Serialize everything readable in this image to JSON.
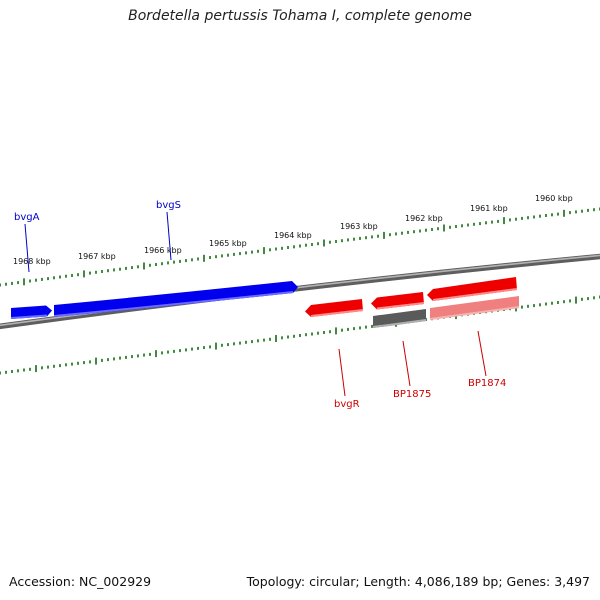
{
  "title": "Bordetella pertussis Tohama I, complete genome",
  "footer": {
    "accession": "Accession: NC_002929",
    "summary": "Topology: circular; Length: 4,086,189 bp; Genes: 3,497"
  },
  "colors": {
    "backbone": "#888888",
    "ticks": "#2e7d2e",
    "forward_gene": "#0000ee",
    "reverse_gene": "#ee0000",
    "grey_feature": "#5a5a5a",
    "pink_feature": "#f08080"
  },
  "scale_labels": [
    "1968 kbp",
    "1967 kbp",
    "1966 kbp",
    "1965 kbp",
    "1964 kbp",
    "1963 kbp",
    "1962 kbp",
    "1961 kbp",
    "1960 kbp"
  ],
  "gene_labels": {
    "bvgA": "bvgA",
    "bvgS": "bvgS",
    "bvgR": "bvgR",
    "BP1875": "BP1875",
    "BP1874": "BP1874"
  }
}
